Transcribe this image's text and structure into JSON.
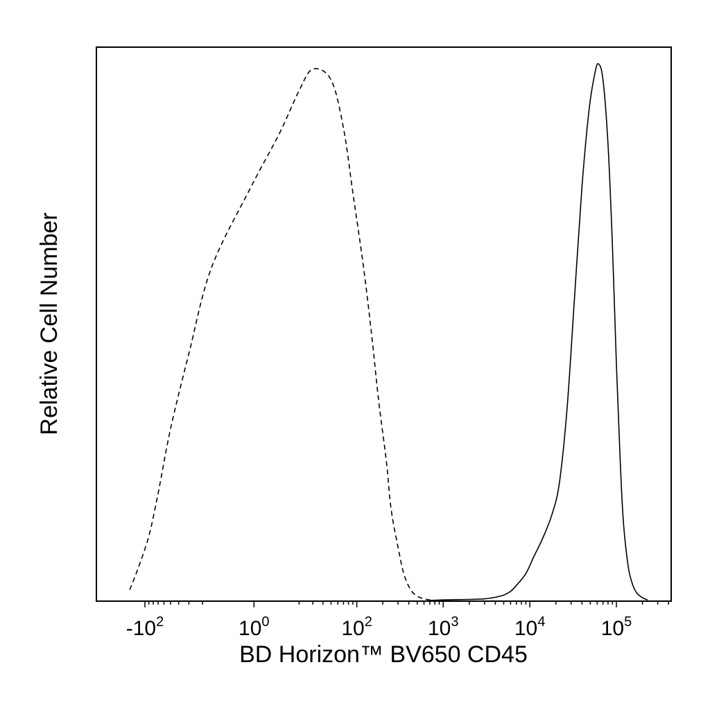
{
  "chart_data": {
    "type": "line",
    "title": "",
    "xlabel": "BD Horizon™ BV650 CD45",
    "ylabel": "Relative Cell Number",
    "x_scale": "biexponential",
    "xlim": [
      -500,
      250000
    ],
    "ylim": [
      0,
      1
    ],
    "grid": false,
    "legend": "none",
    "x_ticks": [
      {
        "value": -100,
        "base": "-10",
        "exp": "2"
      },
      {
        "value": 1,
        "base": "10",
        "exp": "0"
      },
      {
        "value": 100,
        "base": "10",
        "exp": "2"
      },
      {
        "value": 1000,
        "base": "10",
        "exp": "3"
      },
      {
        "value": 10000,
        "base": "10",
        "exp": "4"
      },
      {
        "value": 100000,
        "base": "10",
        "exp": "5"
      }
    ],
    "series": [
      {
        "style": "dashed",
        "color": "#000000",
        "x": [
          -150,
          -120,
          -90,
          -70,
          -50,
          -30,
          -15,
          0,
          10,
          20,
          30,
          50,
          70,
          90,
          120,
          150,
          180,
          220,
          250,
          300,
          350,
          420,
          500,
          600,
          700,
          900
        ],
        "y": [
          0.02,
          0.06,
          0.12,
          0.2,
          0.32,
          0.46,
          0.62,
          0.77,
          0.87,
          0.95,
          0.99,
          0.97,
          0.88,
          0.76,
          0.62,
          0.49,
          0.37,
          0.26,
          0.17,
          0.1,
          0.05,
          0.02,
          0.008,
          0.003,
          0.001,
          0
        ]
      },
      {
        "style": "solid",
        "color": "#000000",
        "x": [
          700,
          1000,
          2000,
          3000,
          4000,
          5000,
          6000,
          7000,
          9000,
          11000,
          14000,
          18000,
          22000,
          27000,
          33000,
          40000,
          48000,
          56000,
          62000,
          70000,
          80000,
          90000,
          100000,
          110000,
          120000,
          135000,
          150000,
          170000,
          200000,
          230000
        ],
        "y": [
          0.0,
          0.001,
          0.002,
          0.003,
          0.006,
          0.01,
          0.017,
          0.028,
          0.05,
          0.08,
          0.115,
          0.16,
          0.22,
          0.36,
          0.57,
          0.77,
          0.91,
          0.98,
          1.0,
          0.97,
          0.85,
          0.66,
          0.44,
          0.27,
          0.15,
          0.07,
          0.035,
          0.015,
          0.005,
          0.001
        ]
      }
    ]
  }
}
